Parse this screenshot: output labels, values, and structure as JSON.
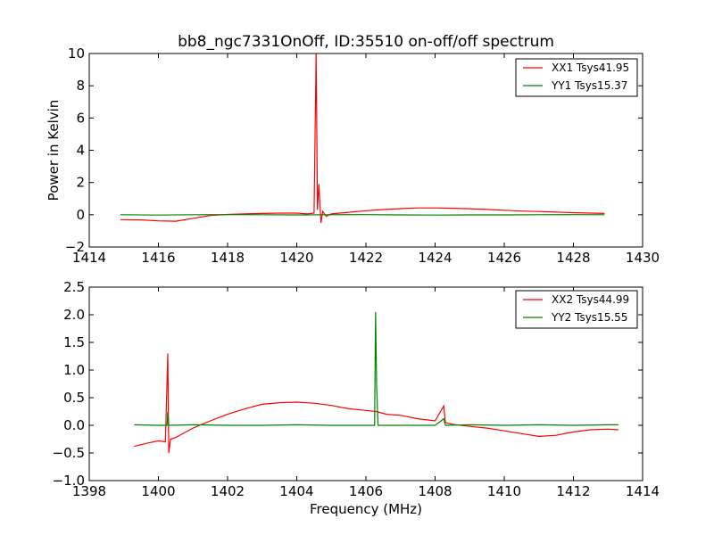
{
  "title": "bb8_ngc7331OnOff, ID:35510 on-off/off spectrum",
  "chart_data": [
    {
      "type": "line",
      "title": "bb8_ngc7331OnOff, ID:35510 on-off/off spectrum",
      "xlabel": "",
      "ylabel": "Power in Kelvin",
      "xlim": [
        1414,
        1430
      ],
      "ylim": [
        -2,
        10
      ],
      "x_ticks": [
        "1414",
        "1416",
        "1418",
        "1420",
        "1422",
        "1424",
        "1426",
        "1428",
        "1430"
      ],
      "y_ticks": [
        "−2",
        "0",
        "2",
        "4",
        "6",
        "8",
        "10"
      ],
      "legend_position": "top-right",
      "series": [
        {
          "name": "XX1 Tsys41.95",
          "color": "#ff0000",
          "x": [
            1414.9,
            1415.5,
            1416.0,
            1416.5,
            1417.0,
            1417.5,
            1418.0,
            1418.5,
            1419.0,
            1419.5,
            1420.0,
            1420.3,
            1420.5,
            1420.56,
            1420.6,
            1420.64,
            1420.7,
            1420.75,
            1420.85,
            1421.0,
            1421.5,
            1422.0,
            1422.5,
            1423.0,
            1423.5,
            1424.0,
            1424.5,
            1425.0,
            1425.5,
            1426.0,
            1426.5,
            1427.0,
            1427.5,
            1428.0,
            1428.5,
            1428.9
          ],
          "y": [
            -0.3,
            -0.32,
            -0.38,
            -0.4,
            -0.22,
            -0.05,
            0.02,
            0.05,
            0.08,
            0.1,
            0.1,
            0.05,
            0.1,
            10.0,
            0.3,
            1.9,
            -0.5,
            0.2,
            -0.1,
            0.05,
            0.15,
            0.25,
            0.32,
            0.38,
            0.42,
            0.42,
            0.4,
            0.37,
            0.33,
            0.28,
            0.23,
            0.2,
            0.16,
            0.13,
            0.1,
            0.08
          ]
        },
        {
          "name": "YY1 Tsys15.37",
          "color": "#008000",
          "x": [
            1414.9,
            1416.0,
            1417.0,
            1418.0,
            1419.0,
            1420.0,
            1421.0,
            1422.0,
            1423.0,
            1424.0,
            1425.0,
            1426.0,
            1427.0,
            1428.0,
            1428.9
          ],
          "y": [
            0.0,
            -0.02,
            0.0,
            0.01,
            0.0,
            -0.01,
            0.0,
            0.01,
            -0.01,
            -0.02,
            -0.01,
            -0.01,
            0.0,
            0.01,
            0.0
          ]
        }
      ]
    },
    {
      "type": "line",
      "title": "",
      "xlabel": "Frequency (MHz)",
      "ylabel": "",
      "xlim": [
        1398,
        1414
      ],
      "ylim": [
        -1.0,
        2.5
      ],
      "x_ticks": [
        "1398",
        "1400",
        "1402",
        "1404",
        "1406",
        "1408",
        "1410",
        "1412",
        "1414"
      ],
      "y_ticks": [
        "−1.0",
        "−0.5",
        "0.0",
        "0.5",
        "1.0",
        "1.5",
        "2.0",
        "2.5"
      ],
      "legend_position": "top-right",
      "series": [
        {
          "name": "XX2 Tsys44.99",
          "color": "#ff0000",
          "x": [
            1399.3,
            1399.7,
            1400.0,
            1400.2,
            1400.27,
            1400.3,
            1400.35,
            1400.5,
            1400.8,
            1401.0,
            1401.5,
            1402.0,
            1402.5,
            1403.0,
            1403.5,
            1404.0,
            1404.5,
            1405.0,
            1405.5,
            1406.0,
            1406.3,
            1406.6,
            1407.0,
            1407.5,
            1408.0,
            1408.25,
            1408.3,
            1408.5,
            1409.0,
            1409.5,
            1410.0,
            1410.5,
            1411.0,
            1411.5,
            1412.0,
            1412.5,
            1413.0,
            1413.3
          ],
          "y": [
            -0.38,
            -0.32,
            -0.28,
            -0.3,
            1.3,
            -0.5,
            -0.25,
            -0.22,
            -0.12,
            -0.05,
            0.08,
            0.2,
            0.3,
            0.38,
            0.41,
            0.42,
            0.4,
            0.36,
            0.3,
            0.27,
            0.25,
            0.2,
            0.18,
            0.12,
            0.08,
            0.35,
            0.05,
            0.02,
            -0.02,
            -0.05,
            -0.1,
            -0.15,
            -0.2,
            -0.18,
            -0.12,
            -0.08,
            -0.07,
            -0.08
          ]
        },
        {
          "name": "YY2 Tsys15.55",
          "color": "#008000",
          "x": [
            1399.3,
            1400.0,
            1400.25,
            1400.27,
            1400.3,
            1401.0,
            1402.0,
            1403.0,
            1404.0,
            1405.0,
            1406.0,
            1406.25,
            1406.28,
            1406.31,
            1406.35,
            1407.0,
            1408.0,
            1408.25,
            1408.3,
            1409.0,
            1410.0,
            1411.0,
            1412.0,
            1413.0,
            1413.3
          ],
          "y": [
            0.01,
            0.0,
            0.0,
            0.25,
            0.0,
            0.01,
            0.0,
            0.0,
            0.01,
            0.0,
            0.0,
            0.0,
            2.05,
            0.7,
            0.0,
            0.0,
            0.0,
            0.12,
            0.0,
            0.01,
            0.0,
            0.01,
            0.0,
            0.01,
            0.01
          ]
        }
      ]
    }
  ]
}
